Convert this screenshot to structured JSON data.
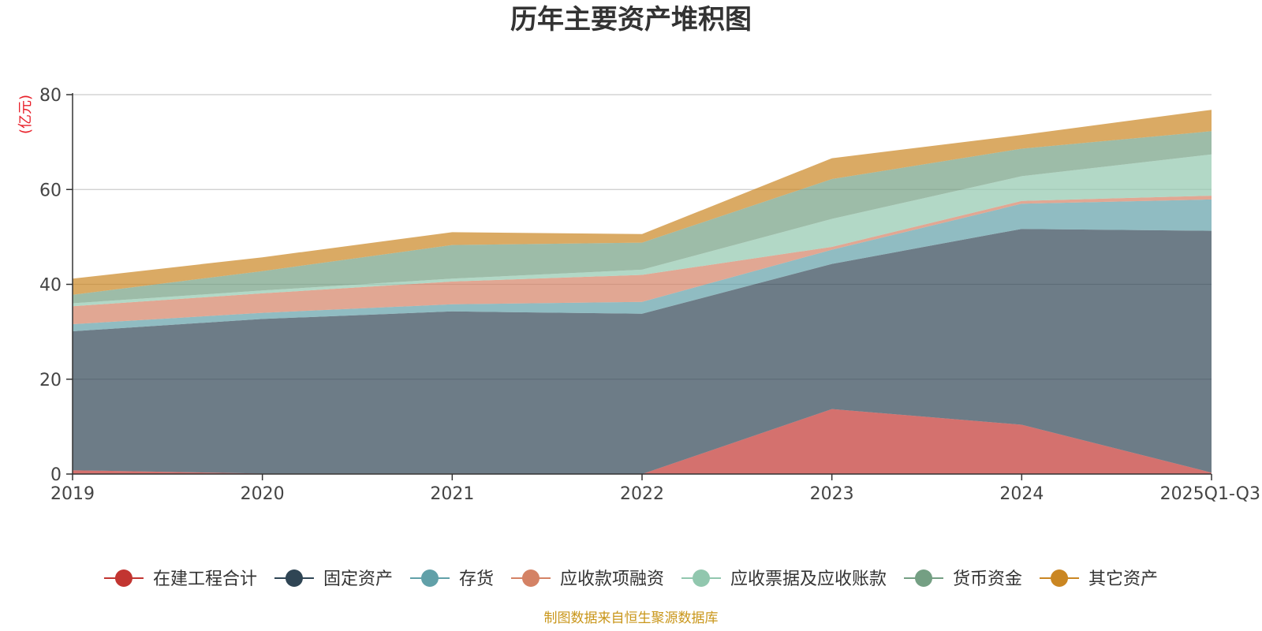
{
  "chart_data": {
    "type": "area",
    "stacked": true,
    "title": "历年主要资产堆积图",
    "ylabel": "(亿元)",
    "ylim": [
      0,
      80
    ],
    "yticks": [
      0,
      20,
      40,
      60,
      80
    ],
    "categories": [
      "2019",
      "2020",
      "2021",
      "2022",
      "2023",
      "2024",
      "2025Q1-Q3"
    ],
    "series": [
      {
        "name": "在建工程合计",
        "color": "#c23531",
        "values": [
          0.8,
          0.1,
          0.1,
          0.0,
          13.7,
          10.4,
          0.3
        ]
      },
      {
        "name": "固定资产",
        "color": "#2f4554",
        "values": [
          29.3,
          32.6,
          34.2,
          33.8,
          30.6,
          41.3,
          51.0
        ]
      },
      {
        "name": "存货",
        "color": "#61a0a8",
        "values": [
          1.5,
          1.3,
          1.5,
          2.5,
          3.0,
          5.3,
          6.6
        ]
      },
      {
        "name": "应收款项融资",
        "color": "#d48265",
        "values": [
          3.8,
          4.1,
          4.8,
          5.7,
          0.6,
          0.6,
          0.8
        ]
      },
      {
        "name": "应收票据及应收账款",
        "color": "#91c7ae",
        "values": [
          0.6,
          0.6,
          0.6,
          1.1,
          5.9,
          5.2,
          8.7
        ]
      },
      {
        "name": "货币资金",
        "color": "#749f83",
        "values": [
          1.8,
          4.1,
          7.1,
          5.7,
          8.4,
          5.8,
          4.9
        ]
      },
      {
        "name": "其它资产",
        "color": "#ca8622",
        "values": [
          3.4,
          2.9,
          2.7,
          1.8,
          4.4,
          2.9,
          4.5
        ]
      }
    ],
    "legend_position": "bottom",
    "grid": true
  },
  "footer": {
    "source_text": "制图数据来自恒生聚源数据库"
  }
}
